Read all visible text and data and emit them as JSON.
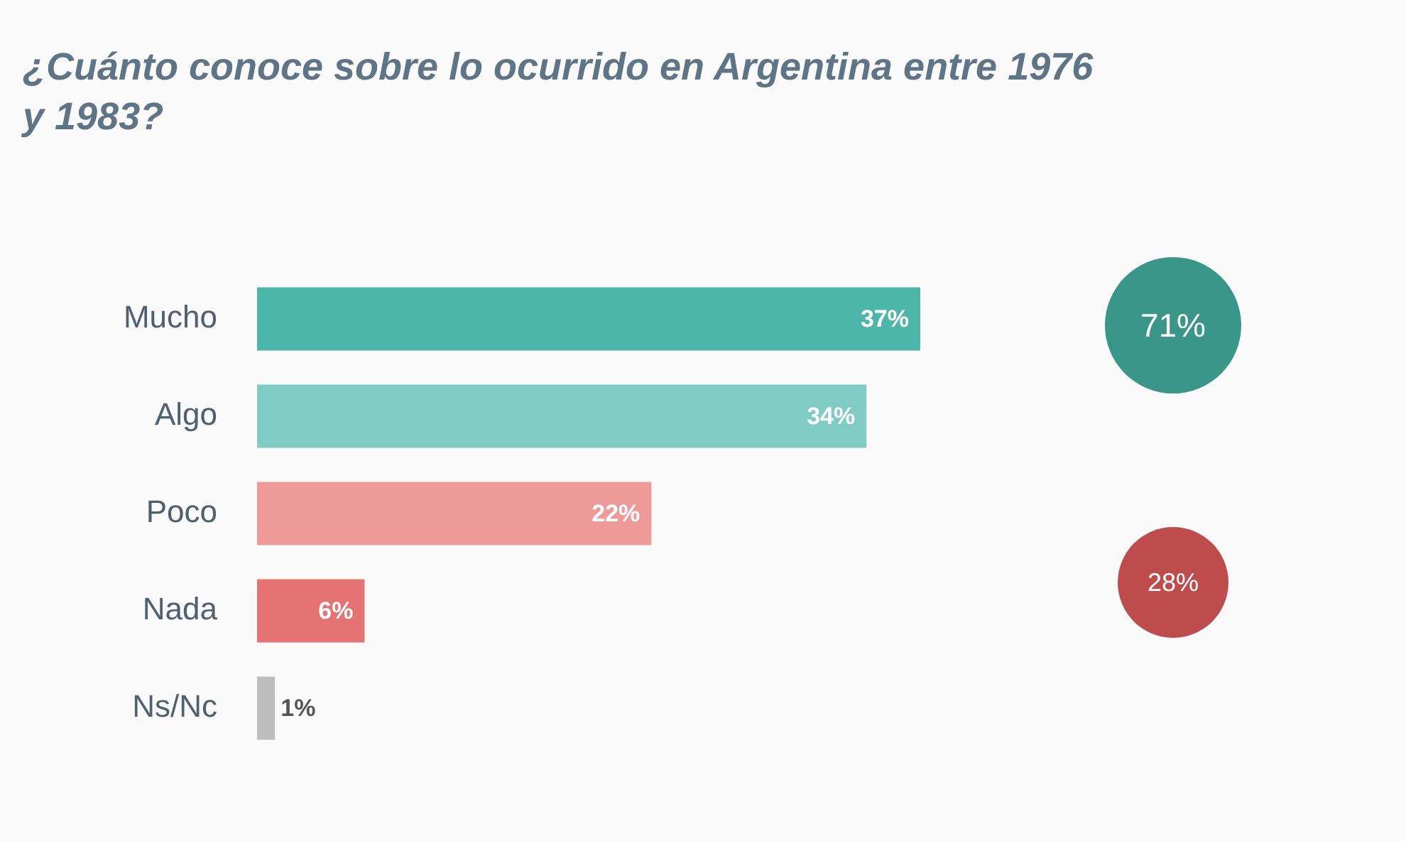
{
  "chart_data": {
    "type": "bar",
    "orientation": "horizontal",
    "title": "¿Cuánto conoce sobre lo ocurrido en Argentina entre 1976 y 1983?",
    "categories": [
      "Mucho",
      "Algo",
      "Poco",
      "Nada",
      "Ns/Nc"
    ],
    "values": [
      37,
      34,
      22,
      6,
      1
    ],
    "colors": [
      "#4db6aa",
      "#80cbc4",
      "#ef9a9a",
      "#e57373",
      "#bdbdbd"
    ],
    "data_labels": true,
    "value_labels": [
      "37%",
      "34%",
      "22%",
      "6%",
      "1%"
    ],
    "grid": false,
    "legend": false,
    "annotations": [
      "71%",
      "28%"
    ]
  }
}
